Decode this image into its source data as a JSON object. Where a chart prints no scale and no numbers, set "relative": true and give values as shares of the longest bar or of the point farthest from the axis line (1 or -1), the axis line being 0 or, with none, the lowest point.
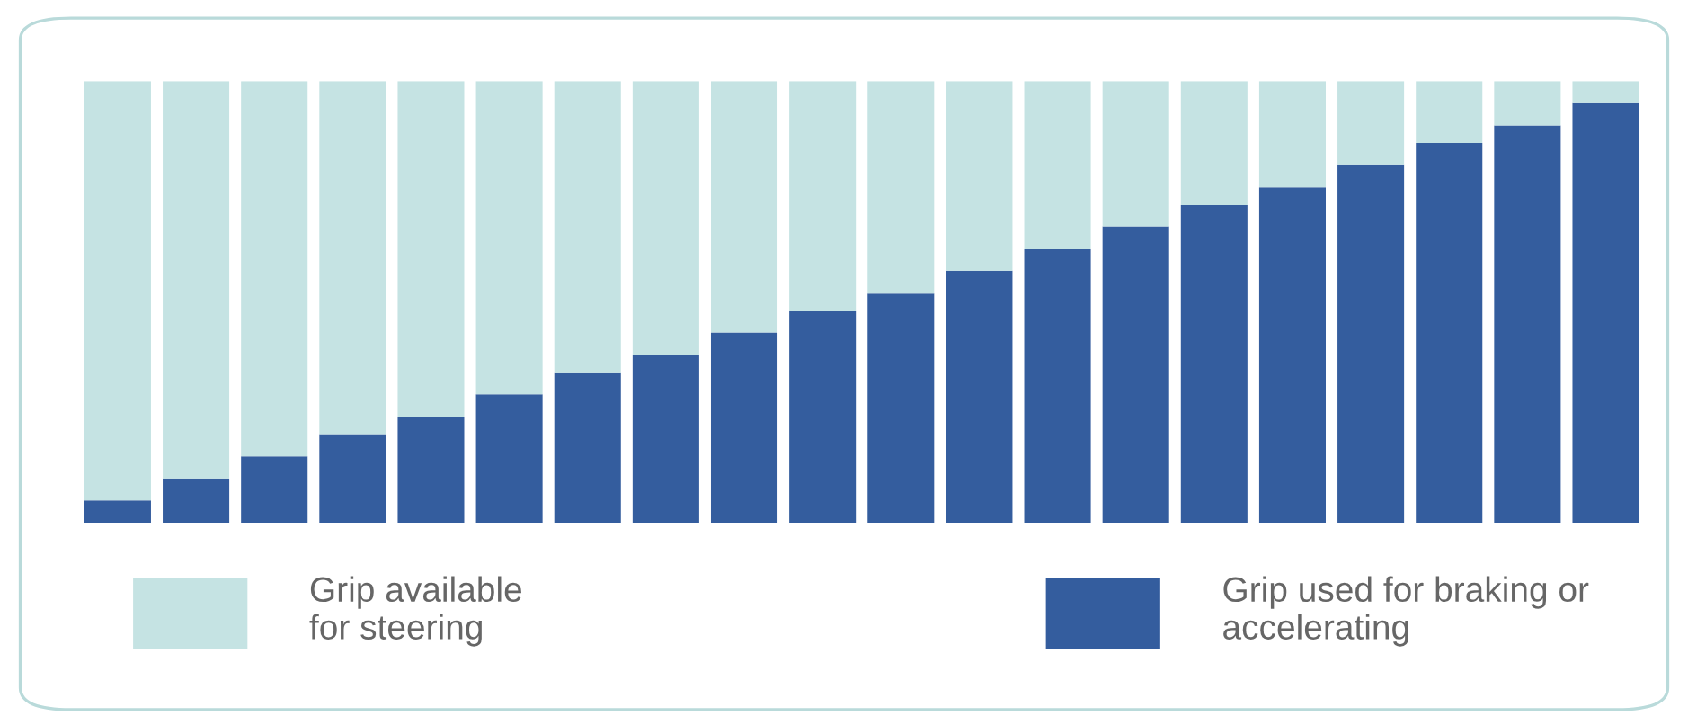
{
  "chart_data": {
    "type": "bar",
    "relative": true,
    "stacked": true,
    "legend": "bottom",
    "grid": false,
    "categories": [
      null,
      null,
      null,
      null,
      null,
      null,
      null,
      null,
      null,
      null,
      null,
      null,
      null,
      null,
      null,
      null,
      null,
      null,
      null,
      null
    ],
    "series": [
      {
        "name": "Grip used for braking or\naccelerating",
        "color": "#345d9e",
        "values": [
          0.05,
          0.1,
          0.15,
          0.2,
          0.24,
          0.29,
          0.34,
          0.38,
          0.43,
          0.48,
          0.52,
          0.57,
          0.62,
          0.67,
          0.72,
          0.76,
          0.81,
          0.86,
          0.9,
          0.95
        ]
      },
      {
        "name": "Grip available\nfor steering",
        "color": "#c5e3e3",
        "values": [
          0.95,
          0.9,
          0.85,
          0.8,
          0.76,
          0.71,
          0.66,
          0.62,
          0.57,
          0.52,
          0.48,
          0.43,
          0.38,
          0.33,
          0.28,
          0.24,
          0.19,
          0.14,
          0.1,
          0.05
        ]
      }
    ]
  }
}
